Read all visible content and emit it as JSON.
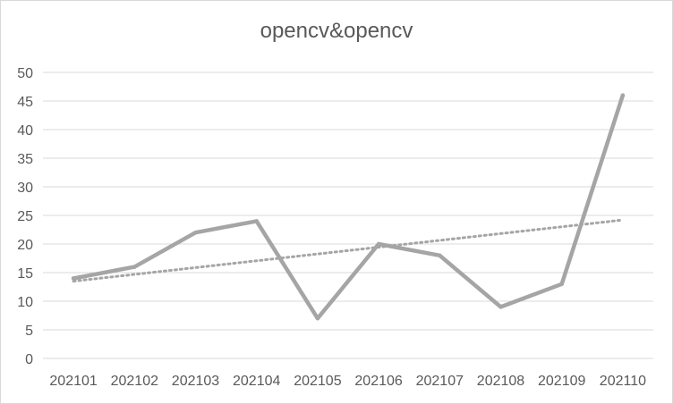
{
  "chart_data": {
    "type": "line",
    "title": "opencv&opencv",
    "xlabel": "",
    "ylabel": "",
    "categories": [
      "202101",
      "202102",
      "202103",
      "202104",
      "202105",
      "202106",
      "202107",
      "202108",
      "202109",
      "202110"
    ],
    "series": [
      {
        "values": [
          14,
          16,
          22,
          24,
          7,
          20,
          18,
          9,
          13,
          46
        ],
        "color": "#a5a5a5"
      }
    ],
    "trendline": {
      "type": "linear",
      "start": 13.5,
      "end": 24.2,
      "color": "#a5a5a5",
      "style": "dotted"
    },
    "ylim": [
      0,
      50
    ],
    "yticks": [
      0,
      5,
      10,
      15,
      20,
      25,
      30,
      35,
      40,
      45,
      50
    ],
    "grid": true,
    "legend": "none"
  }
}
